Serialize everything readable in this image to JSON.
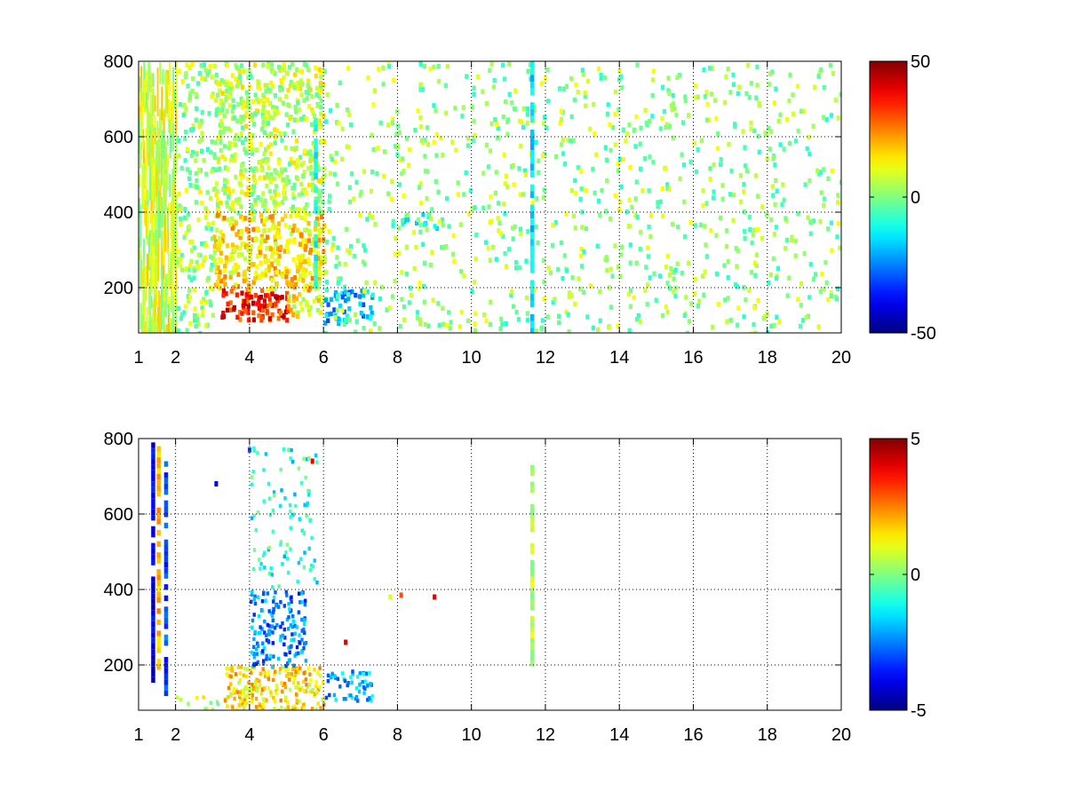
{
  "chart_data": [
    {
      "type": "heatmap",
      "title": "",
      "xlabel": "",
      "ylabel": "",
      "xlim": [
        1,
        20
      ],
      "ylim": [
        80,
        800
      ],
      "grid": true,
      "x_ticks": [
        1,
        2,
        4,
        6,
        8,
        10,
        12,
        14,
        16,
        18,
        20
      ],
      "y_ticks": [
        200,
        400,
        600,
        800
      ],
      "colorbar": {
        "min": -50,
        "max": 50,
        "ticks": [
          -50,
          0,
          50
        ],
        "colormap": "jet"
      },
      "dense_regions": [
        {
          "x": [
            1.0,
            2.0
          ],
          "y": [
            80,
            800
          ],
          "value": 8,
          "density": 0.55,
          "kind": "stripes"
        },
        {
          "x": [
            2.0,
            3.0
          ],
          "y": [
            80,
            800
          ],
          "value": 3,
          "density": 0.35
        },
        {
          "x": [
            3.0,
            6.0
          ],
          "y": [
            400,
            800
          ],
          "value": 6,
          "density": 0.6
        },
        {
          "x": [
            3.0,
            6.0
          ],
          "y": [
            200,
            400
          ],
          "value": 15,
          "density": 0.75
        },
        {
          "x": [
            3.2,
            5.0
          ],
          "y": [
            120,
            200
          ],
          "value": 35,
          "density": 0.85
        },
        {
          "x": [
            5.0,
            6.0
          ],
          "y": [
            130,
            190
          ],
          "value": 12,
          "density": 0.7
        },
        {
          "x": [
            6.0,
            7.3
          ],
          "y": [
            110,
            200
          ],
          "value": -20,
          "density": 0.6
        },
        {
          "x": [
            7.8,
            9.2
          ],
          "y": [
            360,
            400
          ],
          "value": -8,
          "density": 0.5
        },
        {
          "x": [
            6.0,
            20.0
          ],
          "y": [
            80,
            800
          ],
          "value": 2,
          "density": 0.12
        }
      ],
      "vertical_streaks": [
        {
          "x": 11.65,
          "y": [
            80,
            800
          ],
          "value": -15
        },
        {
          "x": 5.8,
          "y": [
            200,
            650
          ],
          "value": -10
        }
      ]
    },
    {
      "type": "heatmap",
      "title": "",
      "xlabel": "",
      "ylabel": "",
      "xlim": [
        1,
        20
      ],
      "ylim": [
        80,
        800
      ],
      "grid": true,
      "x_ticks": [
        1,
        2,
        4,
        6,
        8,
        10,
        12,
        14,
        16,
        18,
        20
      ],
      "y_ticks": [
        200,
        400,
        600,
        800
      ],
      "colorbar": {
        "min": -5,
        "max": 5,
        "ticks": [
          -5,
          0,
          5
        ],
        "colormap": "jet"
      },
      "dense_regions": [
        {
          "x": [
            3.3,
            6.0
          ],
          "y": [
            80,
            200
          ],
          "value": 1.5,
          "density": 0.65
        },
        {
          "x": [
            4.0,
            5.5
          ],
          "y": [
            200,
            400
          ],
          "value": -2.5,
          "density": 0.45
        },
        {
          "x": [
            4.0,
            5.8
          ],
          "y": [
            400,
            780
          ],
          "value": -1,
          "density": 0.12
        },
        {
          "x": [
            6.0,
            7.3
          ],
          "y": [
            110,
            190
          ],
          "value": -2,
          "density": 0.45
        },
        {
          "x": [
            2.0,
            3.3
          ],
          "y": [
            80,
            120
          ],
          "value": 0.5,
          "density": 0.2
        }
      ],
      "vertical_streaks": [
        {
          "x": 1.4,
          "y": [
            150,
            790
          ],
          "value": -4
        },
        {
          "x": 1.55,
          "y": [
            200,
            780
          ],
          "value": 2
        },
        {
          "x": 1.75,
          "y": [
            100,
            740
          ],
          "value": -3
        },
        {
          "x": 11.65,
          "y": [
            210,
            730
          ],
          "value": 0.5
        }
      ],
      "points": [
        {
          "x": 8.1,
          "y": 385,
          "value": 3
        },
        {
          "x": 9.0,
          "y": 380,
          "value": 4
        },
        {
          "x": 7.8,
          "y": 380,
          "value": 1
        },
        {
          "x": 3.1,
          "y": 680,
          "value": -4
        },
        {
          "x": 5.7,
          "y": 740,
          "value": 4
        },
        {
          "x": 4.0,
          "y": 770,
          "value": -3
        },
        {
          "x": 6.6,
          "y": 260,
          "value": 4
        }
      ]
    }
  ]
}
